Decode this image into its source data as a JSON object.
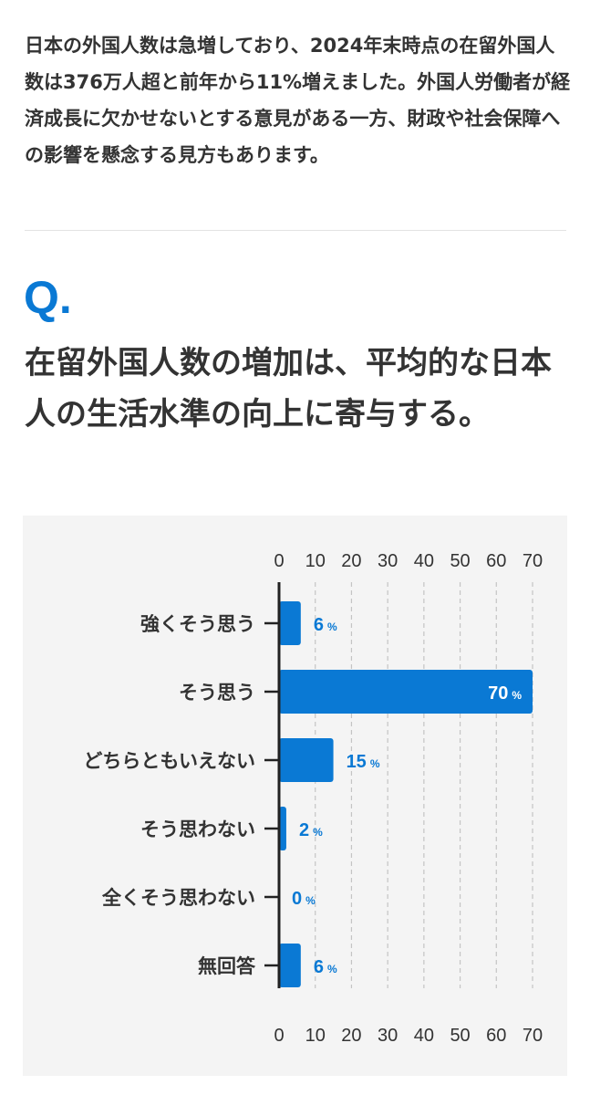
{
  "article": {
    "intro": "日本の外国人数は急増しており、2024年末時点の在留外国人数は376万人超と前年から11%増えました。外国人労働者が経済成長に欠かせないとする意見がある一方、財政や社会保障への影響を懸念する見方もあります。"
  },
  "question": {
    "mark": "Q.",
    "text": "在留外国人数の増加は、平均的な日本人の生活水準の向上に寄与する。"
  },
  "colors": {
    "accent": "#0a79d4",
    "bar": "#0a79d4",
    "value_on_bar": "#ffffff",
    "panel_background": "#f4f4f4"
  },
  "chart_data": {
    "type": "bar",
    "orientation": "horizontal",
    "categories": [
      "強くそう思う",
      "そう思う",
      "どちらともいえない",
      "そう思わない",
      "全くそう思わない",
      "無回答"
    ],
    "values": [
      6,
      70,
      15,
      2,
      0,
      6
    ],
    "value_unit": "%",
    "xlim": [
      0,
      70
    ],
    "xticks": [
      0,
      10,
      20,
      30,
      40,
      50,
      60,
      70
    ],
    "grid": true,
    "tick_labels_top": true,
    "tick_labels_bottom": true,
    "title": "",
    "xlabel": "",
    "ylabel": ""
  }
}
